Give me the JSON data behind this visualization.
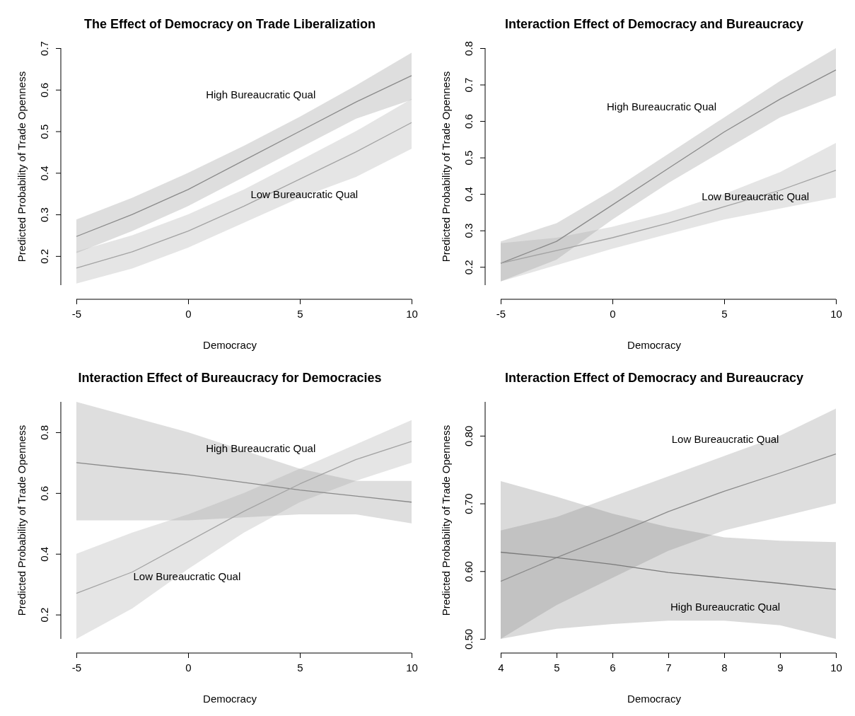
{
  "chart_data": [
    {
      "type": "line",
      "title": "The Effect of Democracy on Trade Liberalization",
      "xlabel": "Democracy",
      "ylabel": "Predicted Probability of Trade Openness",
      "x": [
        -5,
        -2.5,
        0,
        2.5,
        5,
        7.5,
        10
      ],
      "xlim": [
        -5,
        10
      ],
      "xticks": [
        -5,
        0,
        5,
        10
      ],
      "ylim": [
        0.13,
        0.7
      ],
      "yticks": [
        0.2,
        0.3,
        0.4,
        0.5,
        0.6,
        0.7
      ],
      "series": [
        {
          "name": "High Bureaucratic Qual",
          "color": "#8a8a8a",
          "values": [
            0.247,
            0.3,
            0.36,
            0.43,
            0.5,
            0.57,
            0.634
          ],
          "lower": [
            0.207,
            0.26,
            0.32,
            0.39,
            0.46,
            0.53,
            0.576
          ],
          "upper": [
            0.288,
            0.34,
            0.4,
            0.465,
            0.535,
            0.61,
            0.689
          ]
        },
        {
          "name": "Low Bureaucratic Qual",
          "color": "#a3a3a3",
          "values": [
            0.171,
            0.21,
            0.26,
            0.32,
            0.385,
            0.45,
            0.521
          ],
          "lower": [
            0.134,
            0.17,
            0.22,
            0.28,
            0.34,
            0.39,
            0.458
          ],
          "upper": [
            0.211,
            0.25,
            0.3,
            0.36,
            0.43,
            0.5,
            0.578
          ]
        }
      ]
    },
    {
      "type": "line",
      "title": "Interaction Effect of Democracy and Bureaucracy",
      "xlabel": "Democracy",
      "ylabel": "Predicted Probability of Trade Openness",
      "x": [
        -5,
        -2.5,
        0,
        2.5,
        5,
        7.5,
        10
      ],
      "xlim": [
        -5,
        10
      ],
      "xticks": [
        -5,
        0,
        5,
        10
      ],
      "ylim": [
        0.15,
        0.8
      ],
      "yticks": [
        0.2,
        0.3,
        0.4,
        0.5,
        0.6,
        0.7,
        0.8
      ],
      "series": [
        {
          "name": "High Bureaucratic Qual",
          "color": "#8a8a8a",
          "values": [
            0.21,
            0.27,
            0.37,
            0.47,
            0.57,
            0.66,
            0.74
          ],
          "lower": [
            0.16,
            0.22,
            0.33,
            0.43,
            0.52,
            0.61,
            0.67
          ],
          "upper": [
            0.27,
            0.32,
            0.41,
            0.51,
            0.61,
            0.71,
            0.8
          ]
        },
        {
          "name": "Low Bureaucratic Qual",
          "color": "#a3a3a3",
          "values": [
            0.21,
            0.245,
            0.28,
            0.32,
            0.365,
            0.41,
            0.465
          ],
          "lower": [
            0.16,
            0.205,
            0.25,
            0.29,
            0.33,
            0.36,
            0.39
          ],
          "upper": [
            0.265,
            0.28,
            0.31,
            0.35,
            0.4,
            0.46,
            0.54
          ]
        }
      ]
    },
    {
      "type": "line",
      "title": "Interaction Effect of Bureaucracy for Democracies",
      "xlabel": "Democracy",
      "ylabel": "Predicted Probability of Trade Openness",
      "x": [
        -5,
        -2.5,
        0,
        2.5,
        5,
        7.5,
        10
      ],
      "xlim": [
        -5,
        10
      ],
      "xticks": [
        -5,
        0,
        5,
        10
      ],
      "ylim": [
        0.12,
        0.9
      ],
      "yticks": [
        0.2,
        0.4,
        0.6,
        0.8
      ],
      "series": [
        {
          "name": "High Bureaucratic Qual",
          "color": "#8a8a8a",
          "values": [
            0.7,
            0.68,
            0.66,
            0.635,
            0.61,
            0.59,
            0.57
          ],
          "lower": [
            0.51,
            0.51,
            0.51,
            0.52,
            0.53,
            0.53,
            0.5
          ],
          "upper": [
            0.9,
            0.85,
            0.8,
            0.74,
            0.68,
            0.64,
            0.64
          ]
        },
        {
          "name": "Low Bureaucratic Qual",
          "color": "#a3a3a3",
          "values": [
            0.27,
            0.34,
            0.44,
            0.54,
            0.63,
            0.71,
            0.77
          ],
          "lower": [
            0.12,
            0.22,
            0.35,
            0.47,
            0.57,
            0.64,
            0.7
          ],
          "upper": [
            0.4,
            0.47,
            0.53,
            0.6,
            0.68,
            0.76,
            0.84
          ]
        }
      ]
    },
    {
      "type": "line",
      "title": "Interaction Effect of Democracy and Bureaucracy",
      "xlabel": "Democracy",
      "ylabel": "Predicted Probability of Trade Openness",
      "x": [
        4,
        5,
        6,
        7,
        8,
        9,
        10
      ],
      "xlim": [
        4,
        10
      ],
      "xticks": [
        4,
        5,
        6,
        7,
        8,
        9,
        10
      ],
      "ylim": [
        0.5,
        0.85
      ],
      "yticks": [
        {
          "value": 0.5,
          "label": "0.50"
        },
        {
          "value": 0.6,
          "label": "0.60"
        },
        {
          "value": 0.7,
          "label": "0.70"
        },
        {
          "value": 0.8,
          "label": "0.80"
        }
      ],
      "series": [
        {
          "name": "Low Bureaucratic Qual",
          "color": "#8a8a8a",
          "values": [
            0.585,
            0.62,
            0.653,
            0.688,
            0.718,
            0.745,
            0.773
          ],
          "lower": [
            0.5,
            0.55,
            0.59,
            0.63,
            0.66,
            0.68,
            0.7
          ],
          "upper": [
            0.66,
            0.68,
            0.71,
            0.74,
            0.77,
            0.8,
            0.84
          ]
        },
        {
          "name": "High Bureaucratic Qual",
          "color": "#7a7a7a",
          "values": [
            0.628,
            0.62,
            0.61,
            0.598,
            0.59,
            0.582,
            0.573
          ],
          "lower": [
            0.5,
            0.515,
            0.522,
            0.527,
            0.527,
            0.52,
            0.5
          ],
          "upper": [
            0.733,
            0.71,
            0.685,
            0.665,
            0.65,
            0.645,
            0.643
          ]
        }
      ]
    }
  ]
}
